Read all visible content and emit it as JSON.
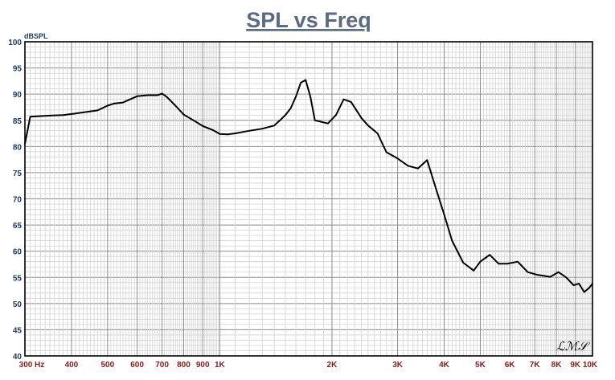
{
  "chart_data": {
    "type": "line",
    "title": "SPL vs Freq",
    "ylabel": "dBSPL",
    "xlabel": "",
    "x_scale": "log",
    "xlim": [
      300,
      10000
    ],
    "ylim": [
      40,
      100
    ],
    "y_ticks": [
      40,
      45,
      50,
      55,
      60,
      65,
      70,
      75,
      80,
      85,
      90,
      95,
      100
    ],
    "x_ticks": [
      {
        "value": 300,
        "label": "300"
      },
      {
        "value": 400,
        "label": "400"
      },
      {
        "value": 500,
        "label": "500"
      },
      {
        "value": 600,
        "label": "600"
      },
      {
        "value": 700,
        "label": "700"
      },
      {
        "value": 800,
        "label": "800"
      },
      {
        "value": 900,
        "label": "900"
      },
      {
        "value": 1000,
        "label": "1K"
      },
      {
        "value": 2000,
        "label": "2K"
      },
      {
        "value": 3000,
        "label": "3K"
      },
      {
        "value": 4000,
        "label": "4K"
      },
      {
        "value": 5000,
        "label": "5K"
      },
      {
        "value": 6000,
        "label": "6K"
      },
      {
        "value": 7000,
        "label": "7K"
      },
      {
        "value": 8000,
        "label": "8K"
      },
      {
        "value": 9000,
        "label": "9K"
      },
      {
        "value": 10000,
        "label": "10K"
      }
    ],
    "x_unit": "Hz",
    "grid": true,
    "series": [
      {
        "color": "#000000",
        "x": [
          300,
          310,
          350,
          380,
          410,
          440,
          470,
          500,
          520,
          550,
          570,
          600,
          640,
          680,
          700,
          720,
          760,
          800,
          850,
          900,
          960,
          1000,
          1050,
          1100,
          1200,
          1300,
          1400,
          1450,
          1500,
          1550,
          1600,
          1650,
          1700,
          1750,
          1800,
          1900,
          1950,
          2050,
          2150,
          2250,
          2400,
          2500,
          2650,
          2800,
          3000,
          3200,
          3400,
          3600,
          3800,
          4000,
          4200,
          4500,
          4800,
          5000,
          5300,
          5600,
          5900,
          6300,
          6700,
          7100,
          7700,
          8100,
          8500,
          8900,
          9200,
          9500,
          9800,
          10000
        ],
        "values": [
          80.5,
          85.7,
          85.9,
          86.0,
          86.3,
          86.6,
          86.9,
          87.8,
          88.2,
          88.4,
          88.9,
          89.6,
          89.8,
          89.8,
          90.1,
          89.5,
          87.8,
          86.1,
          85.0,
          83.9,
          83.1,
          82.4,
          82.3,
          82.5,
          83.0,
          83.4,
          84.0,
          85.0,
          86.0,
          87.3,
          89.5,
          92.2,
          92.7,
          89.5,
          85.0,
          84.6,
          84.4,
          86.0,
          89.0,
          88.5,
          85.4,
          84.0,
          82.5,
          78.9,
          77.7,
          76.3,
          75.8,
          77.4,
          72.0,
          67.0,
          62.0,
          57.8,
          56.3,
          58.0,
          59.3,
          57.6,
          57.6,
          58.0,
          56.0,
          55.5,
          55.1,
          56.0,
          55.0,
          53.5,
          53.8,
          52.2,
          53.0,
          53.8
        ]
      }
    ],
    "watermark": "LMS"
  }
}
